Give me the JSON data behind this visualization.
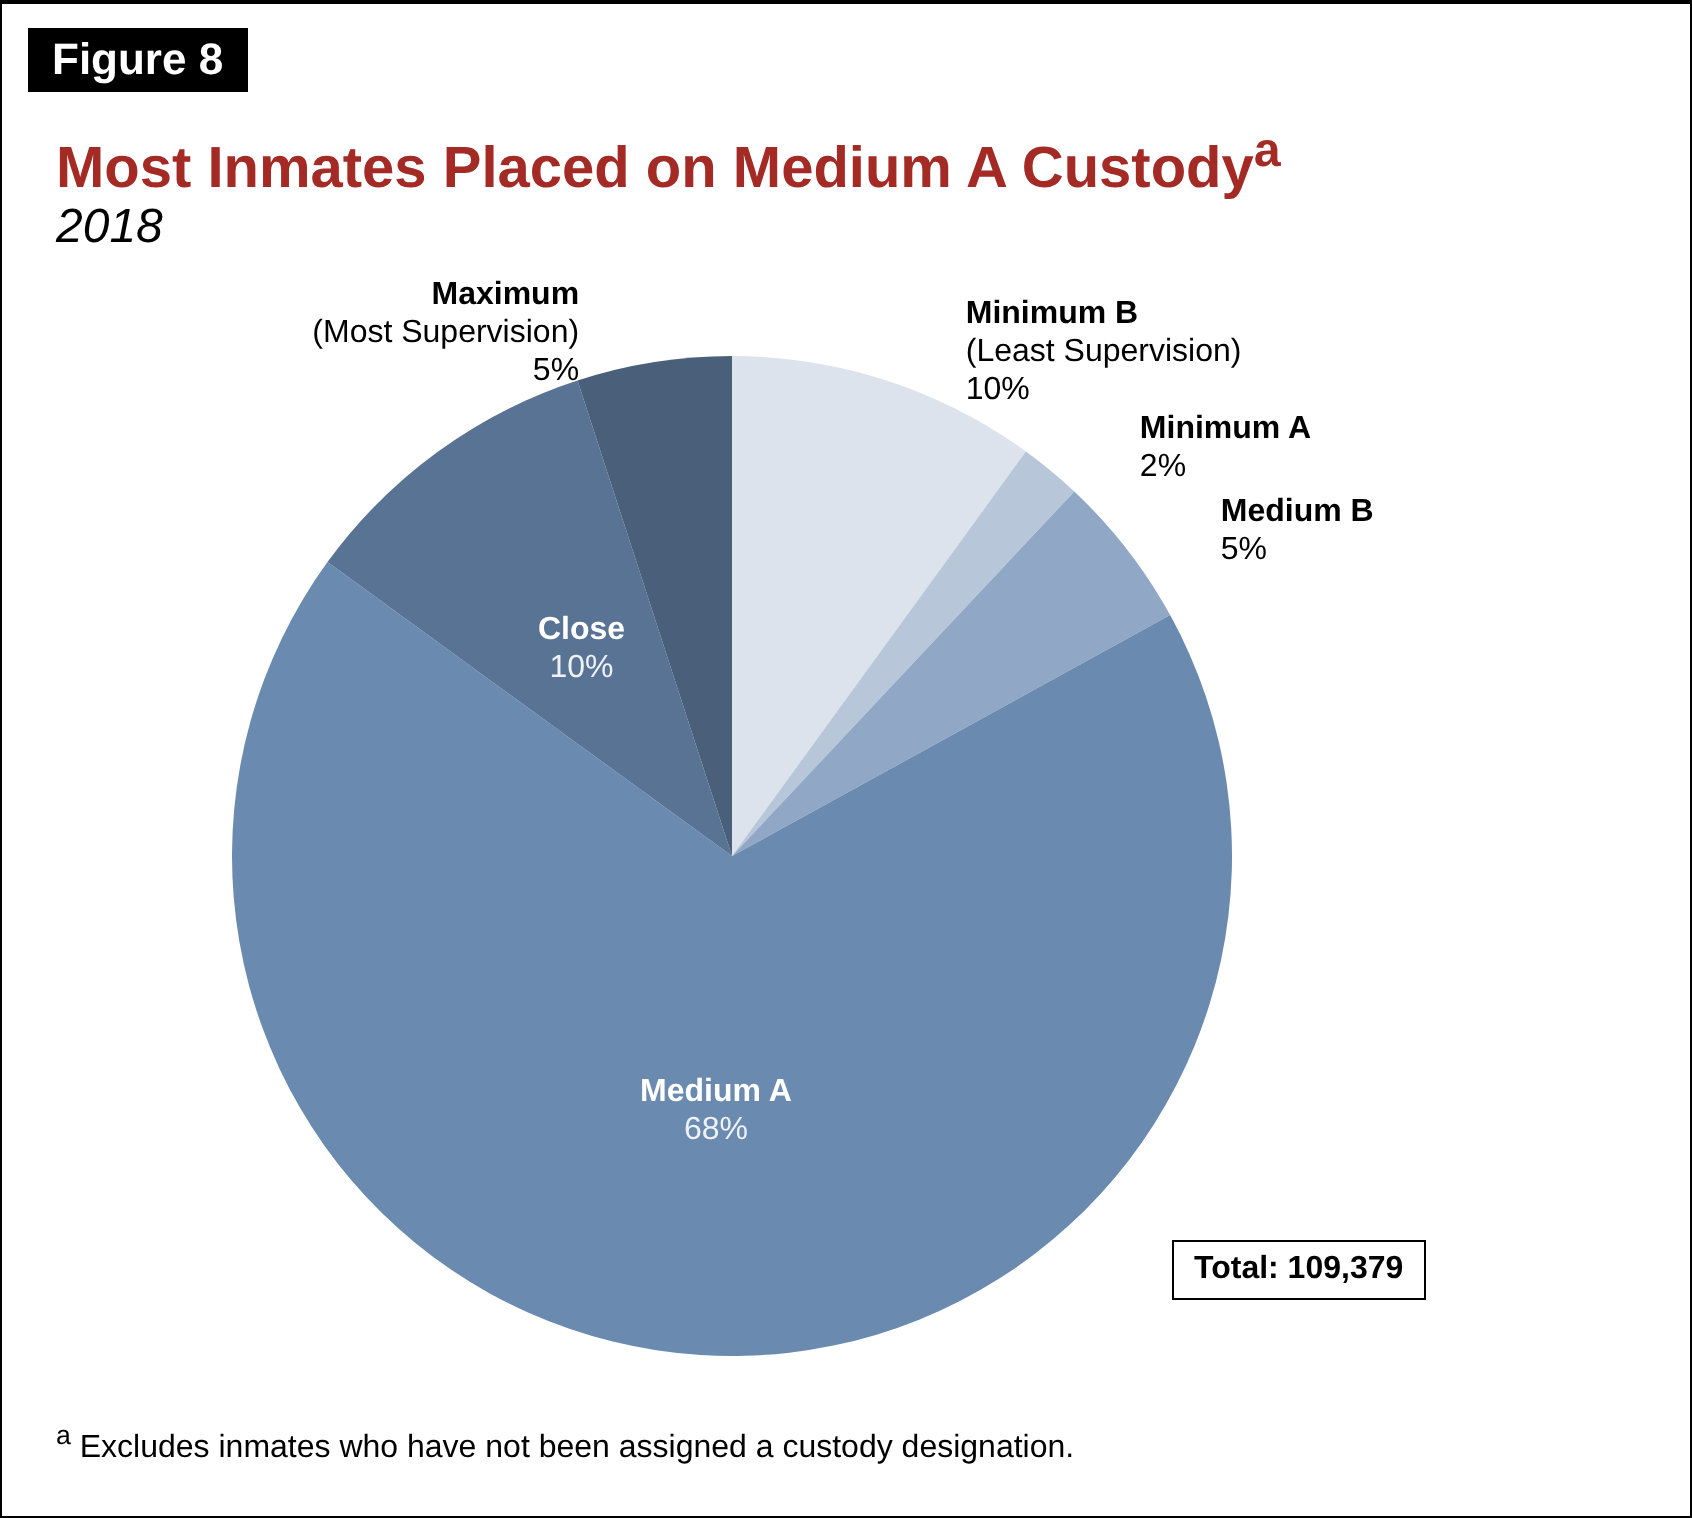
{
  "chart_data": {
    "type": "pie",
    "title": "Most Inmates Placed on Medium A Custody$^{a}$",
    "subtitle": "2018",
    "categories": [
      "Minimum B\n(Least Supervision)",
      "Minimum A",
      "Medium B",
      "Medium A",
      "Close",
      "Maximum\n(Most Supervision)"
    ],
    "values": [
      10,
      2,
      5,
      68,
      10,
      5
    ],
    "value_labels": [
      "10%",
      "2%",
      "5%",
      "68%",
      "10%",
      "5%"
    ],
    "colors": [
      "#dce3ec",
      "#b8c6da",
      "#91a7c6",
      "#6a8ab0",
      "#587394",
      "#4a5f7a"
    ],
    "legend": false,
    "annotations": [
      "Figure 8",
      "Total: 109,379",
      "$^{a}$ Excludes inmates who have not been assigned a custody designation."
    ]
  }
}
